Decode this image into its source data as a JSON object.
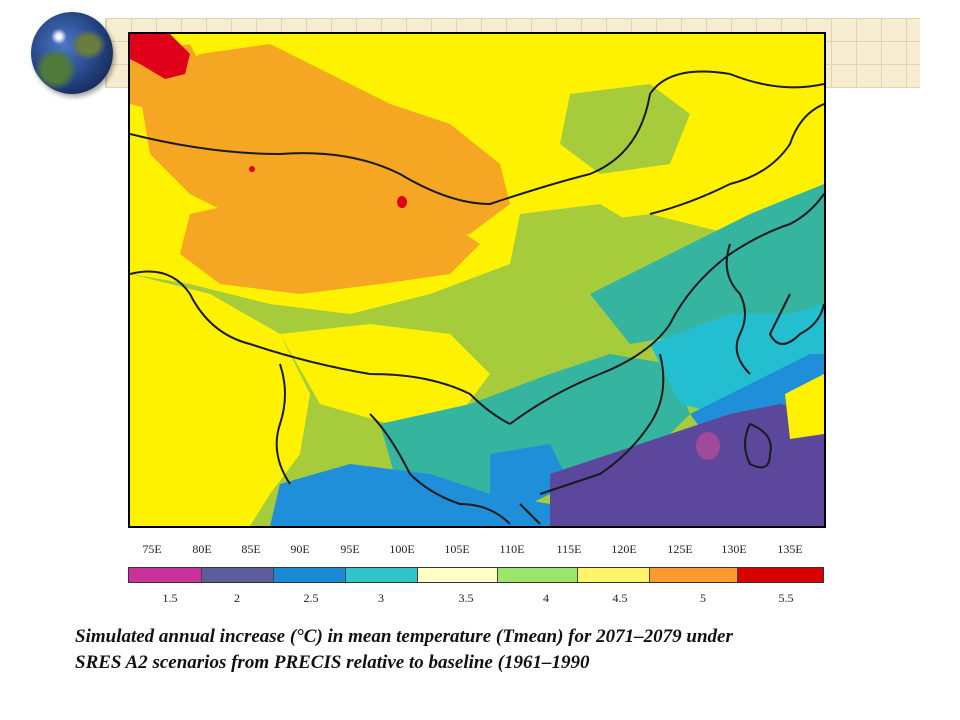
{
  "header": {
    "decor_icon": "globe-icon"
  },
  "map": {
    "coastline_color": "#1a1a1a",
    "palette_order": [
      "#c8329a",
      "#5b5e9b",
      "#2a8bd6",
      "#2ec4c8",
      "#ffffc0",
      "#a0e06a",
      "#fff35a",
      "#ff9a2e",
      "#d90000"
    ]
  },
  "longitudes": [
    "75E",
    "80E",
    "85E",
    "90E",
    "95E",
    "100E",
    "105E",
    "110E",
    "115E",
    "120E",
    "125E",
    "130E",
    "135E"
  ],
  "colorbar": {
    "segments": [
      {
        "color": "#c8329a"
      },
      {
        "color": "#5b5e9b"
      },
      {
        "color": "#1b8ad6"
      },
      {
        "color": "#2ec4c8"
      },
      {
        "color": "#ffffc8"
      },
      {
        "color": "#9be66a"
      },
      {
        "color": "#fff46a"
      },
      {
        "color": "#ff9a2e"
      },
      {
        "color": "#d80000"
      }
    ],
    "labels": [
      "1.5",
      "2",
      "2.5",
      "3",
      "3.5",
      "4",
      "4.5",
      "5",
      "5.5"
    ]
  },
  "caption": {
    "line1": "Simulated annual increase (°C) in mean temperature (Tmean) for 2071–2079 under",
    "line2": "SRES A2  scenarios from PRECIS relative to baseline (1961–1990"
  }
}
